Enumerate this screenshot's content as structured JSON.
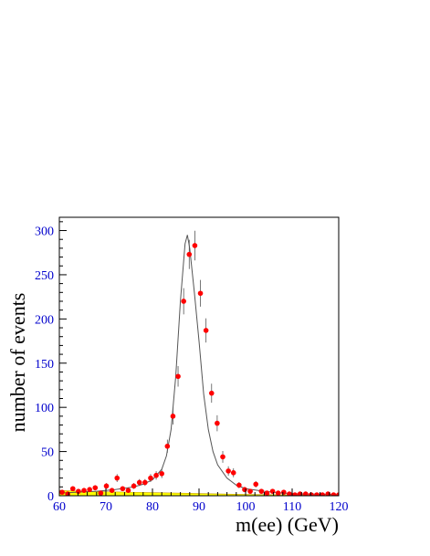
{
  "chart_data": {
    "type": "scatter",
    "title": "",
    "xlabel": "m(ee) (GeV)",
    "ylabel": "number of events",
    "xlim": [
      60,
      120
    ],
    "ylim": [
      0,
      315
    ],
    "xticks": [
      60,
      70,
      80,
      90,
      100,
      110,
      120
    ],
    "yticks": [
      0,
      50,
      100,
      150,
      200,
      250,
      300
    ],
    "grid": false,
    "colors": {
      "data_points": "#ff0000",
      "fit_curve": "#555555",
      "background_fill": "#ffff00",
      "tick_labels": "#0000cc",
      "frame": "#000000"
    },
    "series": [
      {
        "type": "scatter",
        "x": [
          60.6,
          61.8,
          62.9,
          64.1,
          65.3,
          66.5,
          67.7,
          68.9,
          70.1,
          71.3,
          72.4,
          73.6,
          74.8,
          76.0,
          77.2,
          78.4,
          79.6,
          80.8,
          82.0,
          83.2,
          84.4,
          85.5,
          86.7,
          87.9,
          89.1,
          90.3,
          91.5,
          92.7,
          93.9,
          95.1,
          96.3,
          97.4,
          98.6,
          99.8,
          101.0,
          102.2,
          103.4,
          104.6,
          105.8,
          107.0,
          108.2,
          109.4,
          110.6,
          111.7,
          112.9,
          114.1,
          115.3,
          116.5,
          117.7,
          118.9,
          120.0
        ],
        "y": [
          4,
          2,
          8,
          5,
          6,
          7,
          9,
          3,
          11,
          6,
          20,
          8,
          6,
          11,
          15,
          15,
          20,
          23,
          25,
          56,
          90,
          135,
          220,
          273,
          283,
          229,
          187,
          116,
          82,
          44,
          28,
          26,
          12,
          7,
          5,
          13,
          5,
          3,
          5,
          3,
          4,
          2,
          1,
          2,
          2,
          1,
          1,
          1,
          2,
          1,
          1
        ]
      },
      {
        "type": "line",
        "x": [
          60,
          64,
          68,
          72,
          76,
          78,
          80,
          82,
          83,
          84,
          85,
          86,
          87,
          87.5,
          88,
          89,
          90,
          91,
          92,
          93,
          94,
          96,
          98,
          100,
          104,
          108,
          112,
          116,
          120
        ],
        "y": [
          3,
          4,
          5,
          7,
          10,
          13,
          18,
          30,
          45,
          75,
          135,
          220,
          285,
          295,
          280,
          230,
          175,
          115,
          75,
          50,
          35,
          20,
          12,
          8,
          5,
          3,
          2,
          2,
          1
        ]
      },
      {
        "type": "area",
        "x": [
          60,
          65,
          70,
          75,
          80,
          85,
          90,
          95,
          100,
          110,
          120
        ],
        "y": [
          6,
          5,
          4.5,
          4,
          3.5,
          3,
          2.5,
          2,
          1.5,
          1,
          0.5
        ]
      }
    ]
  }
}
